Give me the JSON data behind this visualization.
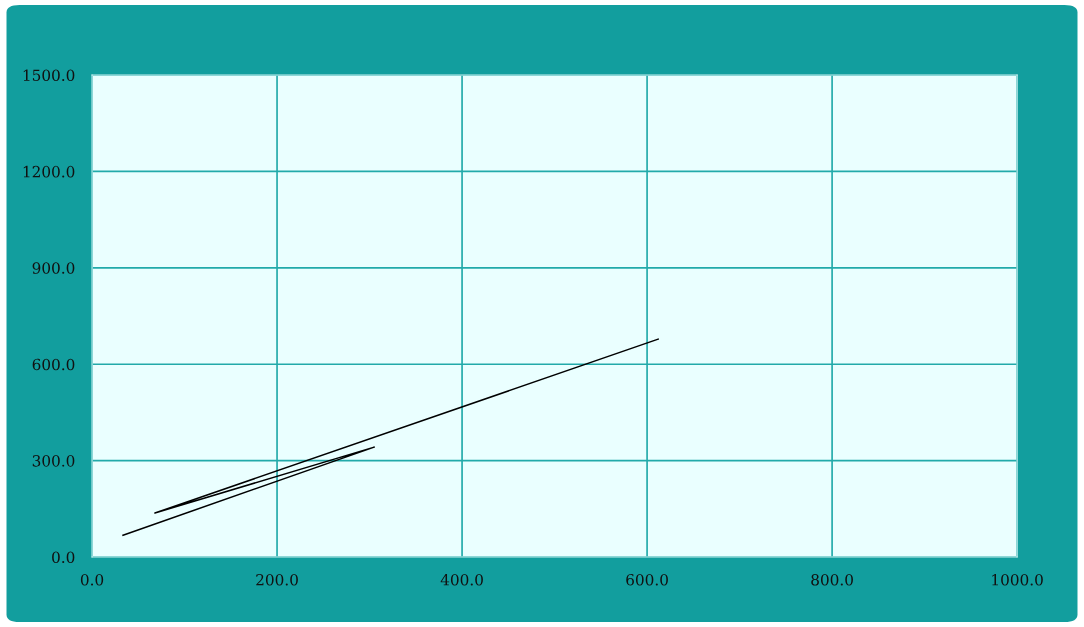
{
  "chart_data": {
    "type": "line",
    "x": [
      33.5,
      305,
      68,
      612
    ],
    "series": [
      {
        "color": "#000000",
        "values": [
          68,
          342,
          137,
          678
        ]
      }
    ],
    "xlim": [
      0,
      1000
    ],
    "ylim": [
      0,
      1500
    ],
    "xticks": [
      {
        "value": 0,
        "label": "0.0"
      },
      {
        "value": 200,
        "label": "200.0"
      },
      {
        "value": 400,
        "label": "400.0"
      },
      {
        "value": 600,
        "label": "600.0"
      },
      {
        "value": 800,
        "label": "800.0"
      },
      {
        "value": 1000,
        "label": "1000.0"
      }
    ],
    "yticks": [
      {
        "value": 0,
        "label": "0.0"
      },
      {
        "value": 300,
        "label": "300.0"
      },
      {
        "value": 600,
        "label": "600.0"
      },
      {
        "value": 900,
        "label": "900.0"
      },
      {
        "value": 1200,
        "label": "1200.0"
      },
      {
        "value": 1500,
        "label": "1500.0"
      }
    ],
    "grid": true,
    "marker": "none",
    "line_style": "solid"
  }
}
